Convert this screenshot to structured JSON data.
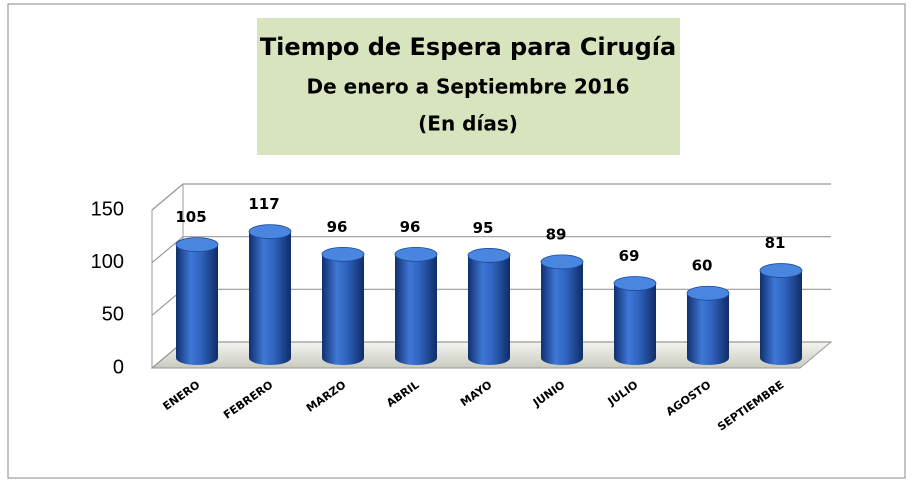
{
  "chart_data": {
    "type": "bar",
    "title": "Tiempo de Espera para Cirugía",
    "subtitle": "De enero a  Septiembre 2016",
    "unit_note": "(En días)",
    "categories": [
      "ENERO",
      "FEBRERO",
      "MARZO",
      "ABRIL",
      "MAYO",
      "JUNIO",
      "JULIO",
      "AGOSTO",
      "SEPTIEMBRE"
    ],
    "values": [
      105,
      117,
      96,
      96,
      95,
      89,
      69,
      60,
      81
    ],
    "color": "#2e5fb5",
    "ylim": [
      0,
      150
    ],
    "yticks": [
      0,
      50,
      100,
      150
    ],
    "grid": true
  }
}
